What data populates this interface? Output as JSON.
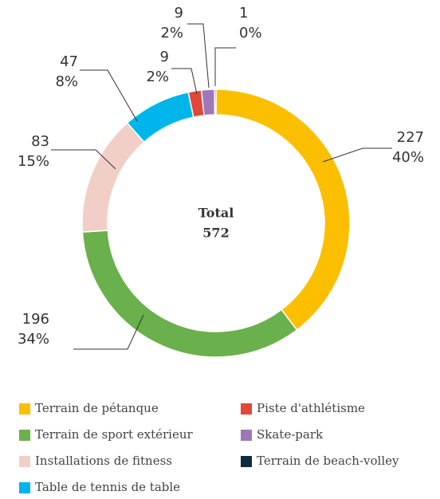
{
  "chart_data": {
    "type": "donut",
    "categories": [
      "Terrain de pétanque",
      "Terrain de sport extérieur",
      "Installations de fitness",
      "Table de tennis de table",
      "Piste d'athlétisme",
      "Skate-park",
      "Terrain de beach-volley"
    ],
    "values": [
      227,
      196,
      83,
      47,
      9,
      9,
      1
    ],
    "percent_labels": [
      "40%",
      "34%",
      "15%",
      "8%",
      "2%",
      "2%",
      "0%"
    ],
    "colors": [
      "#fbbf00",
      "#6ab04c",
      "#f2cfc6",
      "#00b5e9",
      "#e0493a",
      "#a077b8",
      "#0d2c40"
    ],
    "total_label": "Total",
    "total": 572
  }
}
